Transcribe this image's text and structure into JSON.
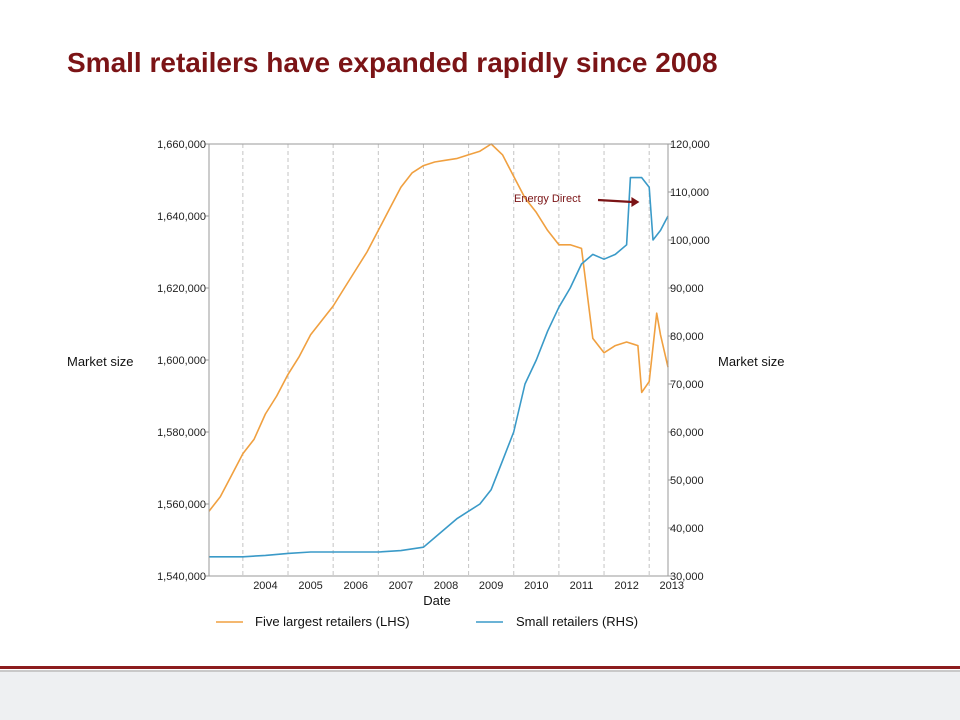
{
  "slide": {
    "title": "Small retailers have expanded rapidly since 2008"
  },
  "colors": {
    "title": "#7b1416",
    "lhs_series": "#f0a040",
    "rhs_series": "#3a9ac8",
    "annotation_arrow": "#7b1416",
    "footer_accent": "#8c1d1e"
  },
  "chart_data": {
    "type": "line",
    "xlabel": "Date",
    "ylabel_left": "Market size",
    "ylabel_right": "Market size",
    "x_ticks": [
      "2004",
      "2005",
      "2006",
      "2007",
      "2008",
      "2009",
      "2010",
      "2011",
      "2012",
      "2013"
    ],
    "xlim": [
      "2003-04",
      "2013-06"
    ],
    "ylim_left": [
      1540000,
      1660000
    ],
    "ylim_right": [
      30000,
      120000
    ],
    "yticks_left": [
      "1,540,000",
      "1,560,000",
      "1,580,000",
      "1,600,000",
      "1,620,000",
      "1,640,000",
      "1,660,000"
    ],
    "yticks_right": [
      "30,000",
      "40,000",
      "50,000",
      "60,000",
      "70,000",
      "80,000",
      "90,000",
      "100,000",
      "110,000",
      "120,000"
    ],
    "grid": "vertical dashed",
    "legend_position": "bottom",
    "annotation": {
      "text": "Energy Direct",
      "x": "2012-12"
    },
    "series": [
      {
        "name": "Five largest retailers (LHS)",
        "axis": "left",
        "color": "#f0a040",
        "points": [
          [
            "2003-04",
            1558000
          ],
          [
            "2003-07",
            1562000
          ],
          [
            "2003-10",
            1568000
          ],
          [
            "2004-01",
            1574000
          ],
          [
            "2004-04",
            1578000
          ],
          [
            "2004-07",
            1585000
          ],
          [
            "2004-10",
            1590000
          ],
          [
            "2005-01",
            1596000
          ],
          [
            "2005-04",
            1601000
          ],
          [
            "2005-07",
            1607000
          ],
          [
            "2005-10",
            1611000
          ],
          [
            "2006-01",
            1615000
          ],
          [
            "2006-04",
            1620000
          ],
          [
            "2006-07",
            1625000
          ],
          [
            "2006-10",
            1630000
          ],
          [
            "2007-01",
            1636000
          ],
          [
            "2007-04",
            1642000
          ],
          [
            "2007-07",
            1648000
          ],
          [
            "2007-10",
            1652000
          ],
          [
            "2008-01",
            1654000
          ],
          [
            "2008-04",
            1655000
          ],
          [
            "2008-07",
            1655500
          ],
          [
            "2008-10",
            1656000
          ],
          [
            "2009-01",
            1657000
          ],
          [
            "2009-04",
            1658000
          ],
          [
            "2009-07",
            1660000
          ],
          [
            "2009-10",
            1657000
          ],
          [
            "2010-01",
            1651000
          ],
          [
            "2010-04",
            1645000
          ],
          [
            "2010-07",
            1641000
          ],
          [
            "2010-10",
            1636000
          ],
          [
            "2011-01",
            1632000
          ],
          [
            "2011-04",
            1632000
          ],
          [
            "2011-07",
            1631000
          ],
          [
            "2011-10",
            1606000
          ],
          [
            "2012-01",
            1602000
          ],
          [
            "2012-04",
            1604000
          ],
          [
            "2012-07",
            1605000
          ],
          [
            "2012-10",
            1604000
          ],
          [
            "2012-11",
            1591000
          ],
          [
            "2013-01",
            1594000
          ],
          [
            "2013-03",
            1613000
          ],
          [
            "2013-04",
            1607000
          ],
          [
            "2013-06",
            1598000
          ]
        ]
      },
      {
        "name": "Small retailers (RHS)",
        "axis": "right",
        "color": "#3a9ac8",
        "points": [
          [
            "2003-04",
            34000
          ],
          [
            "2004-01",
            34000
          ],
          [
            "2004-07",
            34300
          ],
          [
            "2005-01",
            34700
          ],
          [
            "2005-07",
            35000
          ],
          [
            "2006-01",
            35000
          ],
          [
            "2006-07",
            35000
          ],
          [
            "2007-01",
            35000
          ],
          [
            "2007-07",
            35300
          ],
          [
            "2008-01",
            36000
          ],
          [
            "2008-04",
            38000
          ],
          [
            "2008-07",
            40000
          ],
          [
            "2008-10",
            42000
          ],
          [
            "2009-01",
            43500
          ],
          [
            "2009-04",
            45000
          ],
          [
            "2009-07",
            48000
          ],
          [
            "2009-10",
            54000
          ],
          [
            "2010-01",
            60000
          ],
          [
            "2010-04",
            70000
          ],
          [
            "2010-07",
            75000
          ],
          [
            "2010-10",
            81000
          ],
          [
            "2011-01",
            86000
          ],
          [
            "2011-04",
            90000
          ],
          [
            "2011-07",
            95000
          ],
          [
            "2011-10",
            97000
          ],
          [
            "2012-01",
            96000
          ],
          [
            "2012-04",
            97000
          ],
          [
            "2012-07",
            99000
          ],
          [
            "2012-08",
            113000
          ],
          [
            "2012-11",
            113000
          ],
          [
            "2013-01",
            111000
          ],
          [
            "2013-02",
            100000
          ],
          [
            "2013-04",
            102000
          ],
          [
            "2013-06",
            105000
          ]
        ]
      }
    ]
  }
}
